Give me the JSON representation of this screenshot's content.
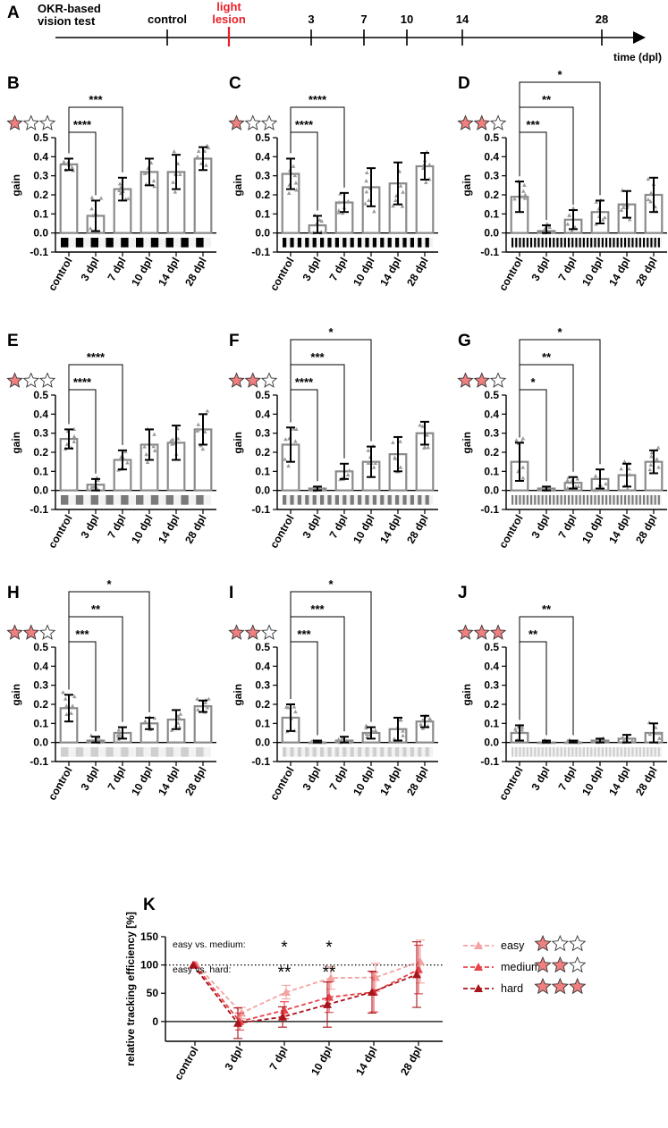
{
  "timeline": {
    "panel_label": "A",
    "title_line1": "OKR-based",
    "title_line2": "vision test",
    "axis_label": "time (dpl)",
    "marks": [
      {
        "label": "control",
        "color": "#000000"
      },
      {
        "label": "light",
        "label2": "lesion",
        "color": "#e8202a"
      },
      {
        "label": "3",
        "color": "#000000"
      },
      {
        "label": "7",
        "color": "#000000"
      },
      {
        "label": "10",
        "color": "#000000"
      },
      {
        "label": "14",
        "color": "#000000"
      },
      {
        "label": "28",
        "color": "#000000"
      }
    ]
  },
  "colors": {
    "bar_outline": "#8a8a8a",
    "star_fill": "#f08080",
    "easy": "#f4a3a3",
    "medium": "#e8434a",
    "hard": "#a8141c"
  },
  "chart_data": [
    {
      "type": "bar",
      "label": "B",
      "stars": 1,
      "stripe": {
        "n": 10,
        "shade": "#000000"
      },
      "ylabel": "gain",
      "ylim": [
        -0.1,
        0.5
      ],
      "yticks": [
        "-0.1",
        "0.0",
        "0.1",
        "0.2",
        "0.3",
        "0.4",
        "0.5"
      ],
      "categories": [
        "control",
        "3 dpl",
        "7 dpl",
        "10 dpl",
        "14 dpl",
        "28 dpl"
      ],
      "values": [
        0.36,
        0.09,
        0.23,
        0.32,
        0.32,
        0.39
      ],
      "errors": [
        0.03,
        0.08,
        0.06,
        0.07,
        0.09,
        0.06
      ],
      "significance": [
        {
          "to": 1,
          "text": "****"
        },
        {
          "to": 2,
          "text": "***"
        }
      ]
    },
    {
      "type": "bar",
      "label": "C",
      "stars": 1,
      "stripe": {
        "n": 20,
        "shade": "#000000"
      },
      "ylabel": "gain",
      "ylim": [
        -0.1,
        0.5
      ],
      "yticks": [
        "-0.1",
        "0.0",
        "0.1",
        "0.2",
        "0.3",
        "0.4",
        "0.5"
      ],
      "categories": [
        "control",
        "3 dpl",
        "7 dpl",
        "10 dpl",
        "14 dpl",
        "28 dpl"
      ],
      "values": [
        0.31,
        0.04,
        0.16,
        0.24,
        0.26,
        0.35
      ],
      "errors": [
        0.08,
        0.05,
        0.05,
        0.1,
        0.11,
        0.07
      ],
      "significance": [
        {
          "to": 1,
          "text": "****"
        },
        {
          "to": 2,
          "text": "****"
        }
      ]
    },
    {
      "type": "bar",
      "label": "D",
      "stars": 2,
      "stripe": {
        "n": 40,
        "shade": "#000000"
      },
      "ylabel": "gain",
      "ylim": [
        -0.1,
        0.5
      ],
      "yticks": [
        "-0.1",
        "0.0",
        "0.1",
        "0.2",
        "0.3",
        "0.4",
        "0.5"
      ],
      "categories": [
        "control",
        "3 dpl",
        "7 dpl",
        "10 dpl",
        "14 dpl",
        "28 dpl"
      ],
      "values": [
        0.19,
        0.01,
        0.07,
        0.11,
        0.15,
        0.2
      ],
      "errors": [
        0.08,
        0.03,
        0.05,
        0.06,
        0.07,
        0.09
      ],
      "significance": [
        {
          "to": 1,
          "text": "***"
        },
        {
          "to": 2,
          "text": "**"
        },
        {
          "to": 3,
          "text": "*"
        }
      ]
    },
    {
      "type": "bar",
      "label": "E",
      "stars": 1,
      "stripe": {
        "n": 10,
        "shade": "#7a7a7a"
      },
      "ylabel": "gain",
      "ylim": [
        -0.1,
        0.5
      ],
      "yticks": [
        "-0.1",
        "0.0",
        "0.1",
        "0.2",
        "0.3",
        "0.4",
        "0.5"
      ],
      "categories": [
        "control",
        "3 dpl",
        "7 dpl",
        "10 dpl",
        "14 dpl",
        "28 dpl"
      ],
      "values": [
        0.27,
        0.03,
        0.16,
        0.24,
        0.25,
        0.32
      ],
      "errors": [
        0.05,
        0.03,
        0.05,
        0.08,
        0.09,
        0.08
      ],
      "significance": [
        {
          "to": 1,
          "text": "****"
        },
        {
          "to": 2,
          "text": "****"
        }
      ]
    },
    {
      "type": "bar",
      "label": "F",
      "stars": 2,
      "stripe": {
        "n": 20,
        "shade": "#7a7a7a"
      },
      "ylabel": "gain",
      "ylim": [
        -0.1,
        0.5
      ],
      "yticks": [
        "-0.1",
        "0.0",
        "0.1",
        "0.2",
        "0.3",
        "0.4",
        "0.5"
      ],
      "categories": [
        "control",
        "3 dpl",
        "7 dpl",
        "10 dpl",
        "14 dpl",
        "28 dpl"
      ],
      "values": [
        0.24,
        0.01,
        0.1,
        0.15,
        0.19,
        0.3
      ],
      "errors": [
        0.09,
        0.01,
        0.04,
        0.08,
        0.09,
        0.06
      ],
      "significance": [
        {
          "to": 1,
          "text": "****"
        },
        {
          "to": 2,
          "text": "***"
        },
        {
          "to": 3,
          "text": "*"
        }
      ]
    },
    {
      "type": "bar",
      "label": "G",
      "stars": 2,
      "stripe": {
        "n": 40,
        "shade": "#7a7a7a"
      },
      "ylabel": "gain",
      "ylim": [
        -0.1,
        0.5
      ],
      "yticks": [
        "-0.1",
        "0.0",
        "0.1",
        "0.2",
        "0.3",
        "0.4",
        "0.5"
      ],
      "categories": [
        "control",
        "3 dpl",
        "7 dpl",
        "10 dpl",
        "14 dpl",
        "28 dpl"
      ],
      "values": [
        0.15,
        0.01,
        0.04,
        0.06,
        0.08,
        0.15
      ],
      "errors": [
        0.1,
        0.01,
        0.03,
        0.05,
        0.06,
        0.06
      ],
      "significance": [
        {
          "to": 1,
          "text": "*"
        },
        {
          "to": 2,
          "text": "**"
        },
        {
          "to": 3,
          "text": "*"
        }
      ]
    },
    {
      "type": "bar",
      "label": "H",
      "stars": 2,
      "stripe": {
        "n": 10,
        "shade": "#cfcfcf"
      },
      "ylabel": "gain",
      "ylim": [
        -0.1,
        0.5
      ],
      "yticks": [
        "-0.1",
        "0.0",
        "0.1",
        "0.2",
        "0.3",
        "0.4",
        "0.5"
      ],
      "categories": [
        "control",
        "3 dpl",
        "7 dpl",
        "10 dpl",
        "14 dpl",
        "28 dpl"
      ],
      "values": [
        0.18,
        0.01,
        0.05,
        0.1,
        0.12,
        0.19
      ],
      "errors": [
        0.07,
        0.02,
        0.03,
        0.03,
        0.05,
        0.03
      ],
      "significance": [
        {
          "to": 1,
          "text": "***"
        },
        {
          "to": 2,
          "text": "**"
        },
        {
          "to": 3,
          "text": "*"
        }
      ]
    },
    {
      "type": "bar",
      "label": "I",
      "stars": 2,
      "stripe": {
        "n": 20,
        "shade": "#cfcfcf"
      },
      "ylabel": "gain",
      "ylim": [
        -0.1,
        0.5
      ],
      "yticks": [
        "-0.1",
        "0.0",
        "0.1",
        "0.2",
        "0.3",
        "0.4",
        "0.5"
      ],
      "categories": [
        "control",
        "3 dpl",
        "7 dpl",
        "10 dpl",
        "14 dpl",
        "28 dpl"
      ],
      "values": [
        0.13,
        0.0,
        0.01,
        0.05,
        0.07,
        0.11
      ],
      "errors": [
        0.07,
        0.01,
        0.02,
        0.03,
        0.06,
        0.03
      ],
      "significance": [
        {
          "to": 1,
          "text": "***"
        },
        {
          "to": 2,
          "text": "***"
        },
        {
          "to": 3,
          "text": "*"
        }
      ]
    },
    {
      "type": "bar",
      "label": "J",
      "stars": 3,
      "stripe": {
        "n": 40,
        "shade": "#cfcfcf"
      },
      "ylabel": "gain",
      "ylim": [
        -0.1,
        0.5
      ],
      "yticks": [
        "-0.1",
        "0.0",
        "0.1",
        "0.2",
        "0.3",
        "0.4",
        "0.5"
      ],
      "categories": [
        "control",
        "3 dpl",
        "7 dpl",
        "10 dpl",
        "14 dpl",
        "28 dpl"
      ],
      "values": [
        0.05,
        0.0,
        0.0,
        0.01,
        0.02,
        0.05
      ],
      "errors": [
        0.04,
        0.01,
        0.01,
        0.01,
        0.02,
        0.05
      ],
      "significance": [
        {
          "to": 1,
          "text": "**"
        },
        {
          "to": 2,
          "text": "**"
        }
      ]
    },
    {
      "type": "line",
      "label": "K",
      "ylabel": "relative tracking efficiency [%]",
      "ylim": [
        -35,
        150
      ],
      "yticks": [
        "0",
        "50",
        "100",
        "150"
      ],
      "categories": [
        "control",
        "3 dpl",
        "7 dpl",
        "10 dpl",
        "14 dpl",
        "28 dpl"
      ],
      "series": [
        {
          "name": "easy",
          "stars": 1,
          "values": [
            100,
            15,
            52,
            77,
            78,
            106
          ],
          "errors": [
            0,
            10,
            12,
            20,
            25,
            38
          ]
        },
        {
          "name": "medium",
          "stars": 2,
          "values": [
            100,
            0,
            20,
            43,
            52,
            92
          ],
          "errors": [
            0,
            15,
            15,
            27,
            35,
            43
          ]
        },
        {
          "name": "hard",
          "stars": 3,
          "values": [
            100,
            -3,
            8,
            30,
            52,
            83
          ],
          "errors": [
            0,
            27,
            18,
            40,
            37,
            58
          ]
        }
      ],
      "annotations": [
        {
          "label": "easy vs. medium:",
          "marks": [
            {
              "x": 2,
              "text": "*"
            },
            {
              "x": 3,
              "text": "*"
            }
          ]
        },
        {
          "label": "easy vs. hard:",
          "marks": [
            {
              "x": 2,
              "text": "**"
            },
            {
              "x": 3,
              "text": "**"
            }
          ]
        }
      ]
    }
  ]
}
